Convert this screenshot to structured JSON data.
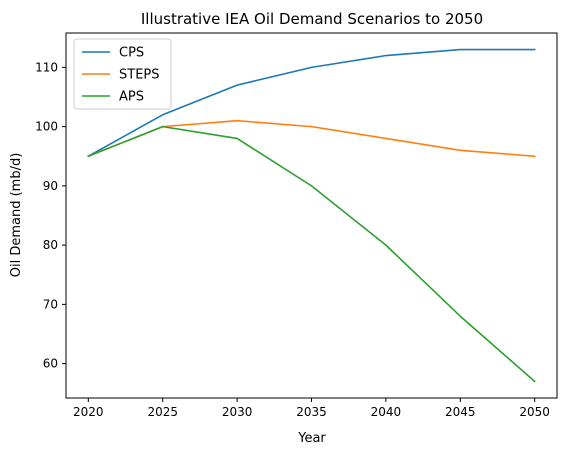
{
  "chart_data": {
    "type": "line",
    "title": "Illustrative IEA Oil Demand Scenarios to 2050",
    "xlabel": "Year",
    "ylabel": "Oil Demand (mb/d)",
    "x": [
      2020,
      2025,
      2030,
      2035,
      2040,
      2045,
      2050
    ],
    "xticks": [
      "2020",
      "2025",
      "2030",
      "2035",
      "2040",
      "2045",
      "2050"
    ],
    "yticks": [
      "60",
      "70",
      "80",
      "90",
      "100",
      "110"
    ],
    "xlim": [
      2018.5,
      2051.5
    ],
    "ylim": [
      54.2,
      115.8
    ],
    "grid": false,
    "legend_position": "top-left",
    "series": [
      {
        "name": "CPS",
        "color": "#1f77b4",
        "values": [
          95,
          102,
          107,
          110,
          112,
          113,
          113
        ]
      },
      {
        "name": "STEPS",
        "color": "#ff7f0e",
        "values": [
          95,
          100,
          101,
          100,
          98,
          96,
          95
        ]
      },
      {
        "name": "APS",
        "color": "#2ca02c",
        "values": [
          95,
          100,
          98,
          90,
          80,
          68,
          57
        ]
      }
    ]
  }
}
